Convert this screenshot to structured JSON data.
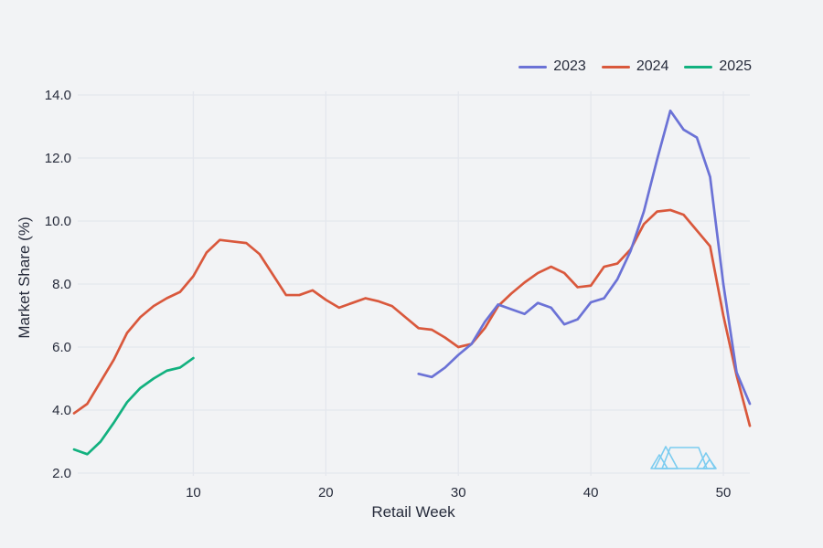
{
  "colors": {
    "background": "#f2f3f5",
    "grid": "#e4e7ed",
    "text": "#262b3b",
    "series_2023": "#6b72d6",
    "series_2024": "#d9583c",
    "series_2025": "#12b17f",
    "watermark": "#7bccf0"
  },
  "chart_data": {
    "type": "line",
    "title": "",
    "xlabel": "Retail Week",
    "ylabel": "Market Share (%)",
    "xlim": [
      1,
      52
    ],
    "ylim": [
      2.0,
      14.0
    ],
    "grid": true,
    "legend_position": "top-right",
    "x_tick_values": [
      10,
      20,
      30,
      40,
      50
    ],
    "x_tick_labels": [
      "10",
      "20",
      "30",
      "40",
      "50"
    ],
    "y_tick_values": [
      2,
      4,
      6,
      8,
      10,
      12,
      14
    ],
    "y_tick_labels": [
      "2.0",
      "4.0",
      "6.0",
      "8.0",
      "10.0",
      "12.0",
      "14.0"
    ],
    "series": [
      {
        "name": "2023",
        "color": "#6b72d6",
        "week_start": 27,
        "values": [
          5.15,
          5.05,
          5.35,
          5.75,
          6.1,
          6.8,
          7.35,
          7.2,
          7.05,
          7.4,
          7.25,
          6.72,
          6.88,
          7.42,
          7.55,
          8.15,
          9.05,
          10.3,
          11.95,
          13.5,
          12.9,
          12.65,
          11.4,
          8.0,
          5.2,
          4.2
        ]
      },
      {
        "name": "2024",
        "color": "#d9583c",
        "week_start": 1,
        "values": [
          3.9,
          4.2,
          4.9,
          5.6,
          6.45,
          6.95,
          7.3,
          7.55,
          7.75,
          8.25,
          9.0,
          9.4,
          9.35,
          9.3,
          8.95,
          8.3,
          7.65,
          7.65,
          7.8,
          7.5,
          7.25,
          7.4,
          7.55,
          7.45,
          7.3,
          6.95,
          6.6,
          6.55,
          6.3,
          6.0,
          6.1,
          6.6,
          7.3,
          7.7,
          8.05,
          8.35,
          8.55,
          8.35,
          7.9,
          7.95,
          8.55,
          8.65,
          9.1,
          9.9,
          10.3,
          10.35,
          10.2,
          9.7,
          9.2,
          7.0,
          5.1,
          3.5
        ]
      },
      {
        "name": "2025",
        "color": "#12b17f",
        "week_start": 1,
        "values": [
          2.75,
          2.6,
          3.0,
          3.6,
          4.25,
          4.7,
          5.0,
          5.25,
          5.35,
          5.65
        ]
      }
    ]
  }
}
